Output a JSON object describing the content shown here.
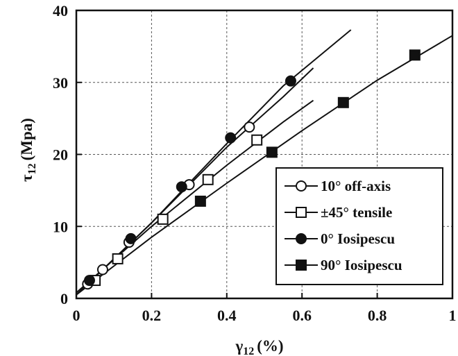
{
  "chart_data": {
    "type": "scatter",
    "xlabel": "γ",
    "xlabel_sub": "12",
    "xlabel_unit": "(%)",
    "ylabel": "τ",
    "ylabel_sub": "12",
    "ylabel_unit": "(Mpa)",
    "xlim": [
      0,
      1
    ],
    "ylim": [
      0,
      40
    ],
    "x_ticks": [
      0,
      0.2,
      0.4,
      0.6,
      0.8,
      1
    ],
    "x_tick_labels": [
      "0",
      "0.2",
      "0.4",
      "0.6",
      "0.8",
      "1"
    ],
    "y_ticks": [
      0,
      10,
      20,
      30,
      40
    ],
    "y_tick_labels": [
      "0",
      "10",
      "20",
      "30",
      "40"
    ],
    "grid": true,
    "legend_position": "lower-right",
    "series": [
      {
        "name": "10° off-axis",
        "marker": "open-circle",
        "points": [
          [
            0.03,
            2.0
          ],
          [
            0.07,
            4.0
          ],
          [
            0.14,
            7.8
          ],
          [
            0.3,
            15.8
          ],
          [
            0.46,
            23.8
          ]
        ],
        "fit": [
          [
            0.0,
            0.5
          ],
          [
            0.2,
            10.5
          ],
          [
            0.4,
            21.0
          ],
          [
            0.55,
            28.0
          ],
          [
            0.63,
            32.0
          ]
        ]
      },
      {
        "name": "±45° tensile",
        "marker": "open-square",
        "points": [
          [
            0.05,
            2.5
          ],
          [
            0.11,
            5.5
          ],
          [
            0.23,
            11.0
          ],
          [
            0.35,
            16.5
          ],
          [
            0.48,
            22.0
          ]
        ],
        "fit": [
          [
            0.0,
            0.8
          ],
          [
            0.2,
            10.0
          ],
          [
            0.4,
            18.5
          ],
          [
            0.55,
            24.5
          ],
          [
            0.63,
            27.5
          ]
        ]
      },
      {
        "name": "0° Iosipescu",
        "marker": "filled-circle",
        "points": [
          [
            0.035,
            2.5
          ],
          [
            0.145,
            8.3
          ],
          [
            0.28,
            15.5
          ],
          [
            0.41,
            22.3
          ],
          [
            0.57,
            30.2
          ]
        ],
        "fit": [
          [
            0.0,
            0.5
          ],
          [
            0.2,
            10.5
          ],
          [
            0.4,
            21.5
          ],
          [
            0.55,
            29.5
          ],
          [
            0.73,
            37.3
          ]
        ]
      },
      {
        "name": "90° Iosipescu",
        "marker": "filled-square",
        "points": [
          [
            0.33,
            13.5
          ],
          [
            0.52,
            20.3
          ],
          [
            0.71,
            27.2
          ],
          [
            0.9,
            33.8
          ]
        ],
        "fit": [
          [
            0.0,
            0.5
          ],
          [
            0.2,
            8.5
          ],
          [
            0.4,
            16.0
          ],
          [
            0.6,
            23.3
          ],
          [
            0.8,
            30.3
          ],
          [
            1.0,
            36.5
          ]
        ]
      }
    ]
  }
}
